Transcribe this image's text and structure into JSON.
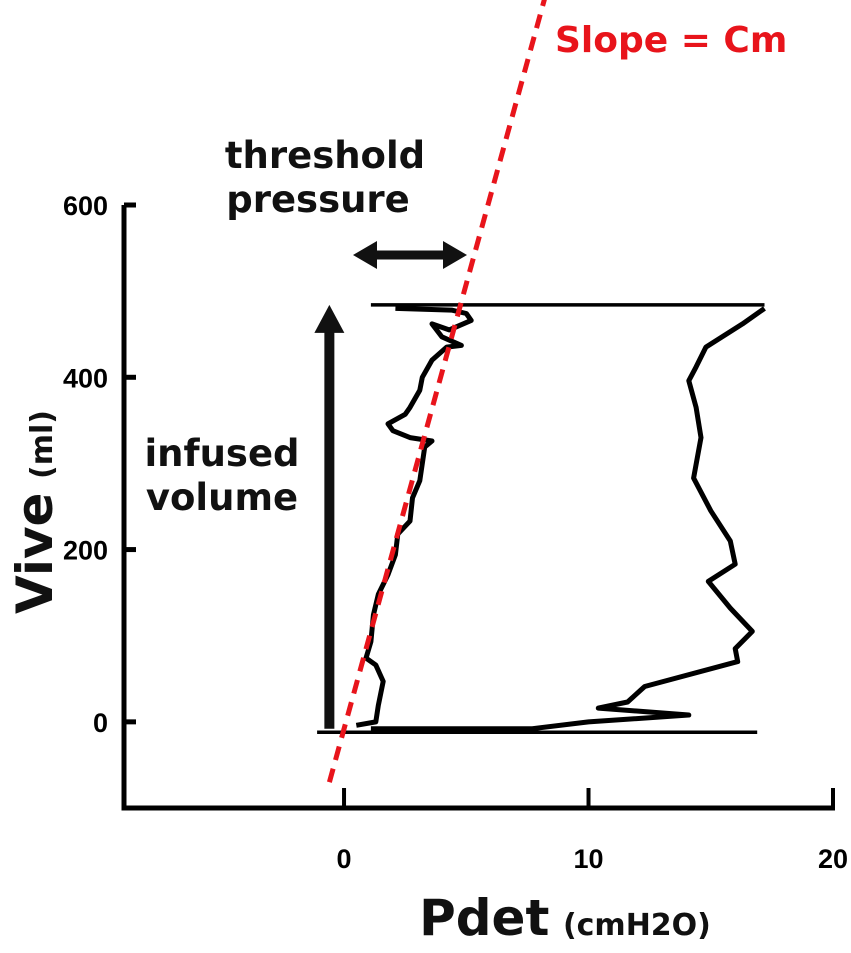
{
  "chart_data": {
    "type": "line",
    "xlabel": "Pdet",
    "xlabel_unit": "(cmH2O)",
    "ylabel": "Vive",
    "ylabel_unit": "(ml)",
    "xlim": [
      -9,
      20
    ],
    "ylim": [
      -100,
      600
    ],
    "xticks": [
      0,
      10,
      20
    ],
    "yticks": [
      0,
      200,
      400,
      600
    ],
    "xtick_labels": [
      "0",
      "10",
      "20"
    ],
    "ytick_labels": [
      "0",
      "200",
      "400",
      "600"
    ],
    "grid": false,
    "colors": {
      "trace": "#000000",
      "fit_line": "#e8141b"
    },
    "series": [
      {
        "role": "filling",
        "points": [
          [
            0.5,
            -4
          ],
          [
            1.3,
            0
          ],
          [
            1.4,
            19
          ],
          [
            1.6,
            47
          ],
          [
            1.3,
            66
          ],
          [
            0.9,
            74
          ],
          [
            1.1,
            93
          ],
          [
            1.2,
            124
          ],
          [
            1.4,
            148
          ],
          [
            1.8,
            171
          ],
          [
            2.1,
            194
          ],
          [
            2.2,
            218
          ],
          [
            2.7,
            233
          ],
          [
            2.8,
            260
          ],
          [
            3.1,
            280
          ],
          [
            3.3,
            319
          ],
          [
            3.6,
            326
          ],
          [
            2.7,
            330
          ],
          [
            2.0,
            338
          ],
          [
            1.8,
            346
          ],
          [
            2.5,
            357
          ],
          [
            2.7,
            365
          ],
          [
            3.1,
            385
          ],
          [
            3.2,
            400
          ],
          [
            3.6,
            420
          ],
          [
            4.2,
            435
          ],
          [
            4.8,
            437
          ],
          [
            4.0,
            447
          ],
          [
            3.6,
            462
          ],
          [
            4.3,
            455
          ],
          [
            5.2,
            466
          ],
          [
            5.0,
            474
          ],
          [
            4.4,
            478
          ],
          [
            2.1,
            480
          ]
        ]
      },
      {
        "role": "top-line",
        "points": [
          [
            1.1,
            484
          ],
          [
            17.2,
            484
          ]
        ]
      },
      {
        "role": "voiding",
        "points": [
          [
            17.2,
            480
          ],
          [
            16.3,
            462
          ],
          [
            14.8,
            435
          ],
          [
            14.4,
            412
          ],
          [
            14.1,
            396
          ],
          [
            14.4,
            365
          ],
          [
            14.6,
            330
          ],
          [
            14.3,
            283
          ],
          [
            15.0,
            245
          ],
          [
            15.8,
            210
          ],
          [
            16.0,
            183
          ],
          [
            14.9,
            163
          ],
          [
            15.8,
            132
          ],
          [
            16.7,
            105
          ],
          [
            16.0,
            85
          ],
          [
            16.1,
            70
          ],
          [
            12.3,
            41
          ],
          [
            11.6,
            23
          ],
          [
            10.4,
            16
          ],
          [
            14.1,
            8
          ],
          [
            10.0,
            0
          ],
          [
            7.7,
            -8
          ],
          [
            1.1,
            -8
          ]
        ]
      },
      {
        "role": "bottom-line",
        "points": [
          [
            -1.1,
            -12
          ],
          [
            16.9,
            -12
          ]
        ]
      },
      {
        "role": "fit",
        "style": "dashed",
        "points": [
          [
            -0.6,
            -70
          ],
          [
            8.2,
            839
          ]
        ]
      }
    ],
    "annotations": [
      {
        "text": "Slope = Cm",
        "color": "#e8141b"
      },
      {
        "text_lines": [
          "threshold",
          "pressure"
        ],
        "marker": "double-arrow-horizontal"
      },
      {
        "text_lines": [
          "infused",
          "volume"
        ],
        "marker": "arrow-up"
      }
    ]
  }
}
